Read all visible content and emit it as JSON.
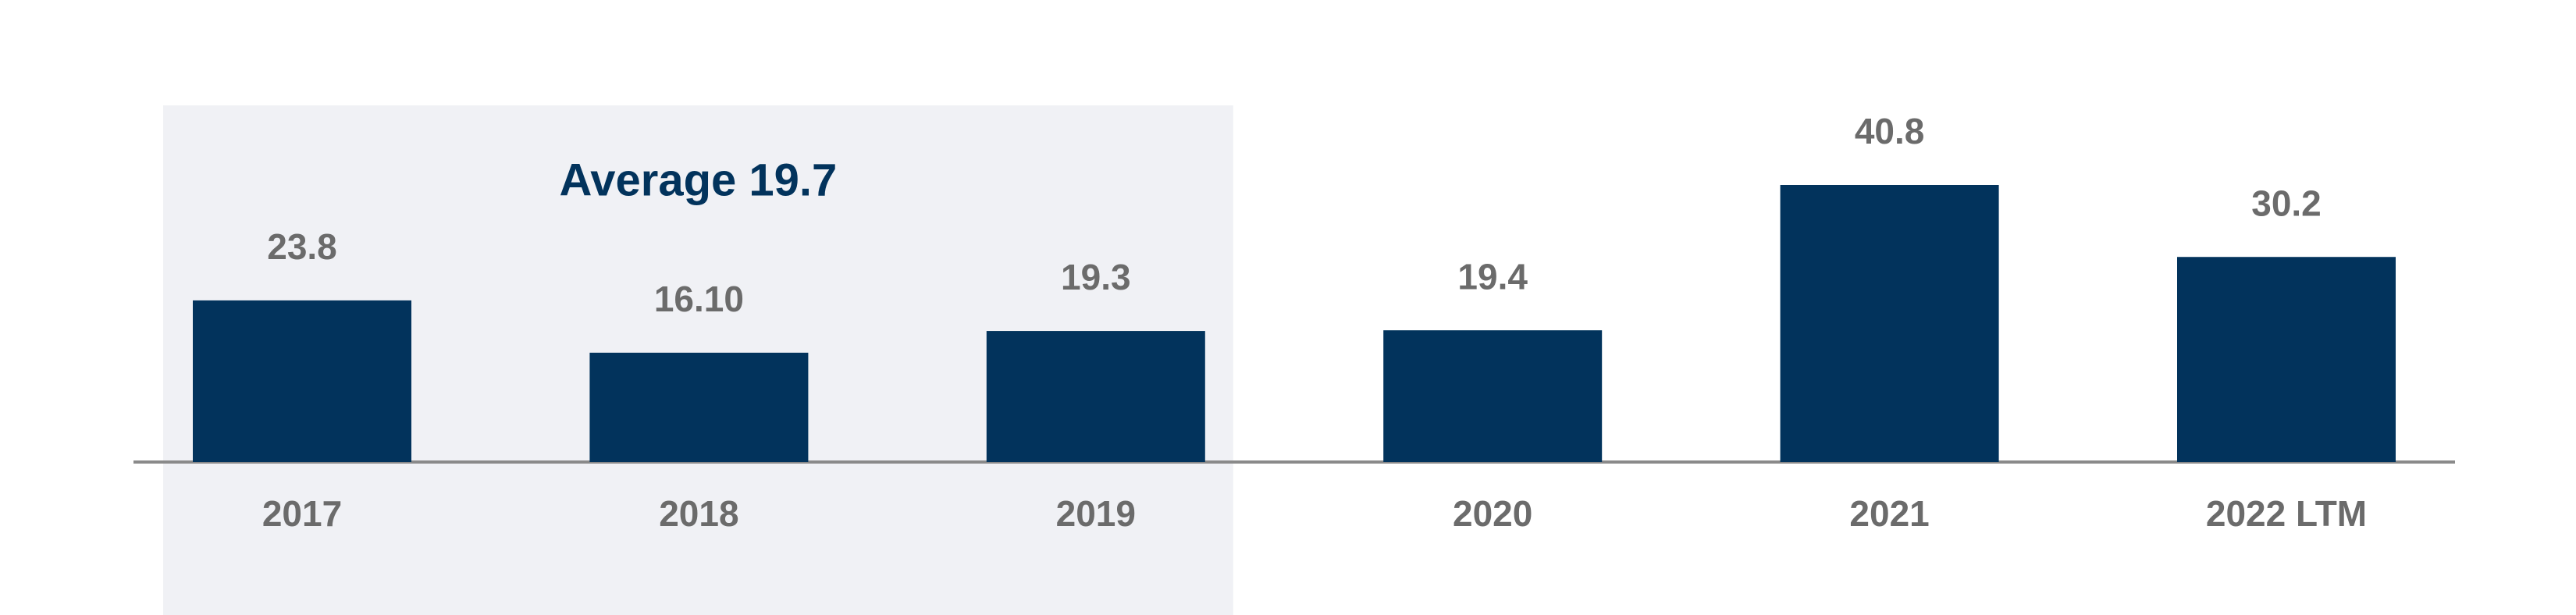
{
  "chart_data": {
    "type": "bar",
    "categories": [
      "2017",
      "2018",
      "2019",
      "2020",
      "2021",
      "2022 LTM"
    ],
    "values": [
      23.8,
      16.1,
      19.3,
      19.4,
      40.8,
      30.2
    ],
    "value_labels": [
      "23.8",
      "16.10",
      "19.3",
      "19.4",
      "40.8",
      "30.2"
    ],
    "color": "#02335c",
    "annotation": "Average 19.7",
    "highlight_range": [
      0,
      2
    ],
    "highlight_color": "#f0f1f5"
  }
}
